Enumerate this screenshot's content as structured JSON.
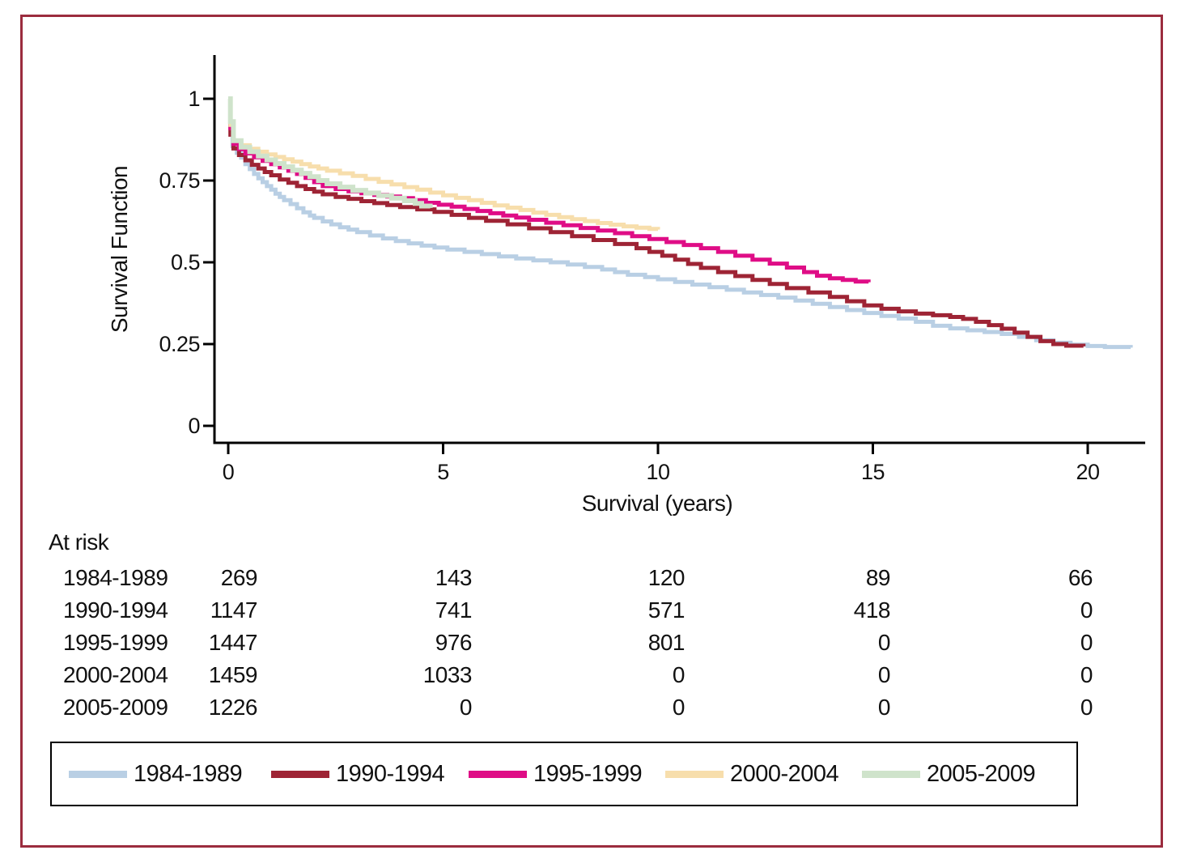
{
  "frame_color": "#9b2c3e",
  "chart_data": {
    "type": "line",
    "subtype": "kaplan-meier-step",
    "title": "",
    "xlabel": "Survival (years)",
    "ylabel": "Survival Function",
    "xlim": [
      0,
      21.5
    ],
    "ylim": [
      0,
      1
    ],
    "x_ticks": [
      0,
      5,
      10,
      15,
      20
    ],
    "x_tick_labels": [
      "0",
      "5",
      "10",
      "15",
      "20"
    ],
    "y_ticks": [
      1,
      0.75,
      0.5,
      0.25,
      0
    ],
    "y_tick_labels": [
      "1",
      "0.75",
      "0.5",
      "0.25",
      "0"
    ],
    "grid": false,
    "legend_position": "bottom-box",
    "axis_color": "#000000",
    "series": [
      {
        "name": "1984-1989",
        "color": "#b9cfe4",
        "line_width": 5,
        "points": [
          [
            0,
            1.0
          ],
          [
            0.05,
            0.92
          ],
          [
            0.1,
            0.855
          ],
          [
            0.2,
            0.835
          ],
          [
            0.3,
            0.82
          ],
          [
            0.4,
            0.8
          ],
          [
            0.5,
            0.785
          ],
          [
            0.6,
            0.77
          ],
          [
            0.7,
            0.757
          ],
          [
            0.8,
            0.745
          ],
          [
            0.9,
            0.733
          ],
          [
            1.0,
            0.722
          ],
          [
            1.1,
            0.71
          ],
          [
            1.2,
            0.7
          ],
          [
            1.3,
            0.69
          ],
          [
            1.45,
            0.678
          ],
          [
            1.6,
            0.665
          ],
          [
            1.75,
            0.653
          ],
          [
            1.9,
            0.643
          ],
          [
            2.0,
            0.636
          ],
          [
            2.2,
            0.625
          ],
          [
            2.4,
            0.616
          ],
          [
            2.6,
            0.607
          ],
          [
            2.8,
            0.6
          ],
          [
            3.0,
            0.592
          ],
          [
            3.3,
            0.582
          ],
          [
            3.6,
            0.573
          ],
          [
            3.9,
            0.565
          ],
          [
            4.2,
            0.558
          ],
          [
            4.5,
            0.551
          ],
          [
            4.8,
            0.545
          ],
          [
            5.1,
            0.539
          ],
          [
            5.5,
            0.532
          ],
          [
            5.9,
            0.525
          ],
          [
            6.3,
            0.518
          ],
          [
            6.7,
            0.512
          ],
          [
            7.1,
            0.506
          ],
          [
            7.5,
            0.5
          ],
          [
            7.9,
            0.493
          ],
          [
            8.3,
            0.486
          ],
          [
            8.7,
            0.478
          ],
          [
            9.0,
            0.47
          ],
          [
            9.3,
            0.462
          ],
          [
            9.7,
            0.455
          ],
          [
            10.0,
            0.448
          ],
          [
            10.4,
            0.44
          ],
          [
            10.8,
            0.432
          ],
          [
            11.2,
            0.424
          ],
          [
            11.6,
            0.416
          ],
          [
            12.0,
            0.408
          ],
          [
            12.4,
            0.4
          ],
          [
            12.8,
            0.392
          ],
          [
            13.2,
            0.383
          ],
          [
            13.6,
            0.373
          ],
          [
            14.0,
            0.363
          ],
          [
            14.4,
            0.354
          ],
          [
            14.8,
            0.345
          ],
          [
            15.2,
            0.336
          ],
          [
            15.6,
            0.328
          ],
          [
            16.0,
            0.318
          ],
          [
            16.4,
            0.306
          ],
          [
            16.8,
            0.298
          ],
          [
            17.2,
            0.292
          ],
          [
            17.6,
            0.287
          ],
          [
            18.0,
            0.281
          ],
          [
            18.4,
            0.272
          ],
          [
            18.8,
            0.262
          ],
          [
            19.2,
            0.254
          ],
          [
            19.6,
            0.248
          ],
          [
            20.0,
            0.244
          ],
          [
            20.4,
            0.241
          ],
          [
            21.0,
            0.239
          ]
        ]
      },
      {
        "name": "1990-1994",
        "color": "#9e2435",
        "line_width": 5,
        "points": [
          [
            0,
            1.0
          ],
          [
            0.05,
            0.89
          ],
          [
            0.12,
            0.848
          ],
          [
            0.25,
            0.828
          ],
          [
            0.4,
            0.812
          ],
          [
            0.55,
            0.798
          ],
          [
            0.7,
            0.787
          ],
          [
            0.85,
            0.776
          ],
          [
            1.0,
            0.766
          ],
          [
            1.2,
            0.753
          ],
          [
            1.4,
            0.743
          ],
          [
            1.6,
            0.733
          ],
          [
            1.8,
            0.724
          ],
          [
            2.0,
            0.716
          ],
          [
            2.2,
            0.708
          ],
          [
            2.5,
            0.7
          ],
          [
            2.8,
            0.694
          ],
          [
            3.1,
            0.687
          ],
          [
            3.4,
            0.681
          ],
          [
            3.7,
            0.675
          ],
          [
            4.0,
            0.669
          ],
          [
            4.4,
            0.662
          ],
          [
            4.8,
            0.654
          ],
          [
            5.2,
            0.645
          ],
          [
            5.6,
            0.636
          ],
          [
            6.0,
            0.627
          ],
          [
            6.5,
            0.616
          ],
          [
            7.0,
            0.604
          ],
          [
            7.5,
            0.592
          ],
          [
            8.0,
            0.58
          ],
          [
            8.5,
            0.568
          ],
          [
            9.0,
            0.556
          ],
          [
            9.5,
            0.543
          ],
          [
            9.8,
            0.532
          ],
          [
            10.1,
            0.52
          ],
          [
            10.4,
            0.508
          ],
          [
            10.7,
            0.495
          ],
          [
            11.0,
            0.483
          ],
          [
            11.4,
            0.47
          ],
          [
            11.8,
            0.458
          ],
          [
            12.2,
            0.446
          ],
          [
            12.6,
            0.434
          ],
          [
            13.0,
            0.421
          ],
          [
            13.5,
            0.408
          ],
          [
            14.0,
            0.394
          ],
          [
            14.4,
            0.381
          ],
          [
            14.8,
            0.368
          ],
          [
            15.2,
            0.358
          ],
          [
            15.6,
            0.35
          ],
          [
            16.0,
            0.343
          ],
          [
            16.4,
            0.338
          ],
          [
            16.8,
            0.333
          ],
          [
            17.1,
            0.327
          ],
          [
            17.4,
            0.318
          ],
          [
            17.7,
            0.308
          ],
          [
            18.0,
            0.297
          ],
          [
            18.3,
            0.285
          ],
          [
            18.6,
            0.272
          ],
          [
            18.9,
            0.259
          ],
          [
            19.2,
            0.25
          ],
          [
            19.5,
            0.245
          ],
          [
            19.9,
            0.243
          ]
        ]
      },
      {
        "name": "1995-1999",
        "color": "#df0d86",
        "line_width": 5,
        "points": [
          [
            0,
            1.0
          ],
          [
            0.05,
            0.91
          ],
          [
            0.12,
            0.862
          ],
          [
            0.25,
            0.846
          ],
          [
            0.4,
            0.833
          ],
          [
            0.6,
            0.821
          ],
          [
            0.8,
            0.81
          ],
          [
            1.0,
            0.8
          ],
          [
            1.2,
            0.79
          ],
          [
            1.4,
            0.78
          ],
          [
            1.6,
            0.77
          ],
          [
            1.8,
            0.758
          ],
          [
            2.0,
            0.745
          ],
          [
            2.2,
            0.733
          ],
          [
            2.5,
            0.724
          ],
          [
            2.8,
            0.717
          ],
          [
            3.1,
            0.711
          ],
          [
            3.4,
            0.706
          ],
          [
            3.7,
            0.701
          ],
          [
            4.0,
            0.696
          ],
          [
            4.3,
            0.69
          ],
          [
            4.6,
            0.682
          ],
          [
            4.9,
            0.676
          ],
          [
            5.2,
            0.67
          ],
          [
            5.5,
            0.663
          ],
          [
            5.8,
            0.657
          ],
          [
            6.1,
            0.65
          ],
          [
            6.4,
            0.643
          ],
          [
            6.7,
            0.637
          ],
          [
            7.0,
            0.63
          ],
          [
            7.4,
            0.621
          ],
          [
            7.8,
            0.613
          ],
          [
            8.2,
            0.605
          ],
          [
            8.6,
            0.597
          ],
          [
            9.0,
            0.589
          ],
          [
            9.4,
            0.58
          ],
          [
            9.8,
            0.571
          ],
          [
            10.2,
            0.562
          ],
          [
            10.6,
            0.553
          ],
          [
            11.0,
            0.543
          ],
          [
            11.4,
            0.532
          ],
          [
            11.8,
            0.52
          ],
          [
            12.2,
            0.508
          ],
          [
            12.6,
            0.496
          ],
          [
            13.0,
            0.484
          ],
          [
            13.4,
            0.47
          ],
          [
            13.7,
            0.459
          ],
          [
            14.0,
            0.451
          ],
          [
            14.3,
            0.446
          ],
          [
            14.6,
            0.441
          ],
          [
            14.9,
            0.439
          ]
        ]
      },
      {
        "name": "2000-2004",
        "color": "#f7deac",
        "line_width": 5,
        "points": [
          [
            0,
            1.0
          ],
          [
            0.05,
            0.92
          ],
          [
            0.12,
            0.872
          ],
          [
            0.3,
            0.858
          ],
          [
            0.5,
            0.847
          ],
          [
            0.7,
            0.838
          ],
          [
            0.9,
            0.83
          ],
          [
            1.1,
            0.822
          ],
          [
            1.3,
            0.815
          ],
          [
            1.5,
            0.808
          ],
          [
            1.7,
            0.8
          ],
          [
            1.9,
            0.793
          ],
          [
            2.1,
            0.787
          ],
          [
            2.3,
            0.78
          ],
          [
            2.6,
            0.772
          ],
          [
            2.9,
            0.764
          ],
          [
            3.2,
            0.755
          ],
          [
            3.5,
            0.746
          ],
          [
            3.8,
            0.738
          ],
          [
            4.1,
            0.73
          ],
          [
            4.4,
            0.722
          ],
          [
            4.7,
            0.713
          ],
          [
            5.0,
            0.705
          ],
          [
            5.3,
            0.697
          ],
          [
            5.6,
            0.69
          ],
          [
            5.9,
            0.682
          ],
          [
            6.2,
            0.674
          ],
          [
            6.5,
            0.667
          ],
          [
            6.8,
            0.66
          ],
          [
            7.1,
            0.652
          ],
          [
            7.4,
            0.645
          ],
          [
            7.7,
            0.638
          ],
          [
            8.0,
            0.632
          ],
          [
            8.3,
            0.626
          ],
          [
            8.6,
            0.62
          ],
          [
            8.9,
            0.615
          ],
          [
            9.2,
            0.61
          ],
          [
            9.5,
            0.606
          ],
          [
            9.8,
            0.602
          ],
          [
            10.0,
            0.6
          ]
        ]
      },
      {
        "name": "2005-2009",
        "color": "#cfe3cb",
        "line_width": 6,
        "points": [
          [
            0,
            1.0
          ],
          [
            0.05,
            0.93
          ],
          [
            0.12,
            0.872
          ],
          [
            0.3,
            0.852
          ],
          [
            0.5,
            0.838
          ],
          [
            0.7,
            0.825
          ],
          [
            0.9,
            0.813
          ],
          [
            1.1,
            0.802
          ],
          [
            1.3,
            0.792
          ],
          [
            1.5,
            0.782
          ],
          [
            1.7,
            0.772
          ],
          [
            1.9,
            0.762
          ],
          [
            2.1,
            0.75
          ],
          [
            2.3,
            0.74
          ],
          [
            2.6,
            0.73
          ],
          [
            2.9,
            0.72
          ],
          [
            3.2,
            0.712
          ],
          [
            3.5,
            0.704
          ],
          [
            3.8,
            0.696
          ],
          [
            4.1,
            0.688
          ],
          [
            4.35,
            0.68
          ],
          [
            4.5,
            0.672
          ],
          [
            4.7,
            0.666
          ]
        ]
      }
    ]
  },
  "at_risk": {
    "title": "At risk",
    "time_points": [
      0,
      5,
      10,
      15,
      20
    ],
    "rows": [
      {
        "label": "1984-1989",
        "values": [
          "269",
          "143",
          "120",
          "89",
          "66"
        ]
      },
      {
        "label": "1990-1994",
        "values": [
          "1147",
          "741",
          "571",
          "418",
          "0"
        ]
      },
      {
        "label": "1995-1999",
        "values": [
          "1447",
          "976",
          "801",
          "0",
          "0"
        ]
      },
      {
        "label": "2000-2004",
        "values": [
          "1459",
          "1033",
          "0",
          "0",
          "0"
        ]
      },
      {
        "label": "2005-2009",
        "values": [
          "1226",
          "0",
          "0",
          "0",
          "0"
        ]
      }
    ]
  },
  "legend": {
    "items": [
      {
        "label": "1984-1989",
        "color": "#b9cfe4"
      },
      {
        "label": "1990-1994",
        "color": "#9e2435"
      },
      {
        "label": "1995-1999",
        "color": "#df0d86"
      },
      {
        "label": "2000-2004",
        "color": "#f7deac"
      },
      {
        "label": "2005-2009",
        "color": "#cfe3cb"
      }
    ]
  }
}
